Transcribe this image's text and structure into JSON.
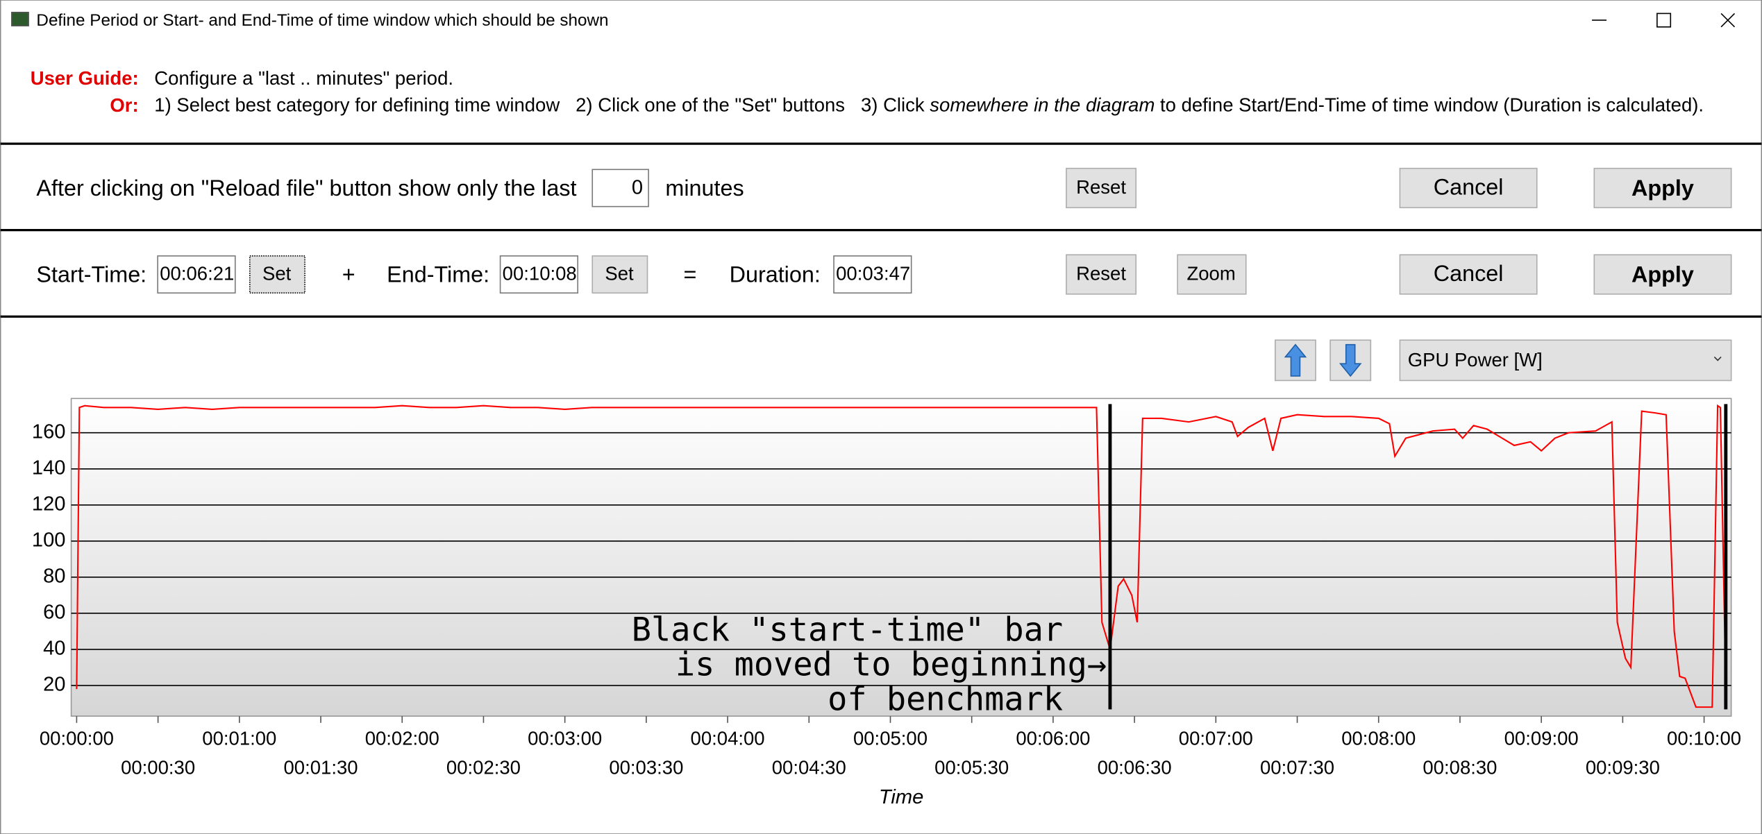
{
  "window": {
    "title": "Define Period or Start- and End-Time of time window which should be shown"
  },
  "guide": {
    "label1": "User Guide:",
    "text1": "Configure a \"last .. minutes\" period.",
    "label2": "Or:",
    "text2": [
      "1) Select best category for defining time window   2) Click one of the \"Set\" buttons   3) Click ",
      "somewhere in the diagram",
      " to define Start/End-Time of time window (Duration is calculated)."
    ]
  },
  "period_row": {
    "text": "After clicking on \"Reload file\" button show only the last",
    "minutes": "0",
    "unit": "minutes",
    "reset": "Reset",
    "cancel": "Cancel",
    "apply": "Apply"
  },
  "time_row": {
    "start_label": "Start-Time:",
    "start_value": "00:06:21",
    "start_set": "Set",
    "plus": "+",
    "end_label": "End-Time:",
    "end_value": "00:10:08",
    "end_set": "Set",
    "equals": "=",
    "duration_label": "Duration:",
    "duration_value": "00:03:47",
    "reset": "Reset",
    "zoom": "Zoom",
    "cancel": "Cancel",
    "apply": "Apply"
  },
  "selector": {
    "value": "GPU Power [W]"
  },
  "chart_data": {
    "type": "line",
    "xlabel": "Time",
    "x": [
      0,
      1,
      3,
      10,
      20,
      30,
      40,
      50,
      60,
      70,
      80,
      90,
      100,
      110,
      120,
      130,
      140,
      150,
      160,
      170,
      180,
      190,
      200,
      210,
      220,
      230,
      240,
      250,
      260,
      270,
      280,
      290,
      300,
      310,
      320,
      330,
      340,
      350,
      360,
      370,
      376,
      378,
      381,
      384,
      386,
      389,
      391,
      393,
      400,
      410,
      420,
      426,
      428,
      432,
      438,
      441,
      444,
      450,
      460,
      470,
      480,
      484,
      486,
      490,
      500,
      508,
      511,
      515,
      520,
      530,
      536,
      540,
      545,
      550,
      560,
      566,
      568,
      571,
      573,
      577,
      582,
      586,
      589,
      591,
      593,
      597,
      601,
      603,
      605,
      606,
      608
    ],
    "series": [
      {
        "name": "GPU Power [W]",
        "color": "#ff0000",
        "values": [
          18,
          174,
          175,
          174,
          174,
          173,
          174,
          173,
          174,
          174,
          174,
          174,
          174,
          174,
          175,
          174,
          174,
          175,
          174,
          174,
          173,
          174,
          174,
          174,
          174,
          174,
          174,
          174,
          174,
          174,
          174,
          174,
          174,
          174,
          174,
          174,
          174,
          174,
          174,
          174,
          174,
          55,
          40,
          75,
          79,
          70,
          55,
          168,
          168,
          166,
          169,
          166,
          158,
          163,
          168,
          150,
          168,
          170,
          169,
          169,
          168,
          165,
          147,
          157,
          161,
          162,
          157,
          164,
          162,
          153,
          155,
          150,
          157,
          160,
          161,
          166,
          55,
          35,
          30,
          172,
          171,
          170,
          50,
          25,
          24,
          8,
          8,
          8,
          175,
          174,
          20
        ]
      }
    ],
    "time_markers": [
      381,
      608
    ],
    "annotation": [
      "Black \"start-time\" bar",
      "is moved to beginning→",
      "of benchmark"
    ],
    "xlim": [
      -2,
      610
    ],
    "ylim": [
      3,
      179
    ],
    "yticks": [
      20,
      40,
      60,
      80,
      100,
      120,
      140,
      160
    ],
    "xticks": [
      {
        "value": 0,
        "label": "00:00:00"
      },
      {
        "value": 30,
        "label": "00:00:30"
      },
      {
        "value": 60,
        "label": "00:01:00"
      },
      {
        "value": 90,
        "label": "00:01:30"
      },
      {
        "value": 120,
        "label": "00:02:00"
      },
      {
        "value": 150,
        "label": "00:02:30"
      },
      {
        "value": 180,
        "label": "00:03:00"
      },
      {
        "value": 210,
        "label": "00:03:30"
      },
      {
        "value": 240,
        "label": "00:04:00"
      },
      {
        "value": 270,
        "label": "00:04:30"
      },
      {
        "value": 300,
        "label": "00:05:00"
      },
      {
        "value": 330,
        "label": "00:05:30"
      },
      {
        "value": 360,
        "label": "00:06:00"
      },
      {
        "value": 390,
        "label": "00:06:30"
      },
      {
        "value": 420,
        "label": "00:07:00"
      },
      {
        "value": 450,
        "label": "00:07:30"
      },
      {
        "value": 480,
        "label": "00:08:00"
      },
      {
        "value": 510,
        "label": "00:08:30"
      },
      {
        "value": 540,
        "label": "00:09:00"
      },
      {
        "value": 570,
        "label": "00:09:30"
      },
      {
        "value": 600,
        "label": "00:10:00"
      }
    ],
    "grid": true
  }
}
